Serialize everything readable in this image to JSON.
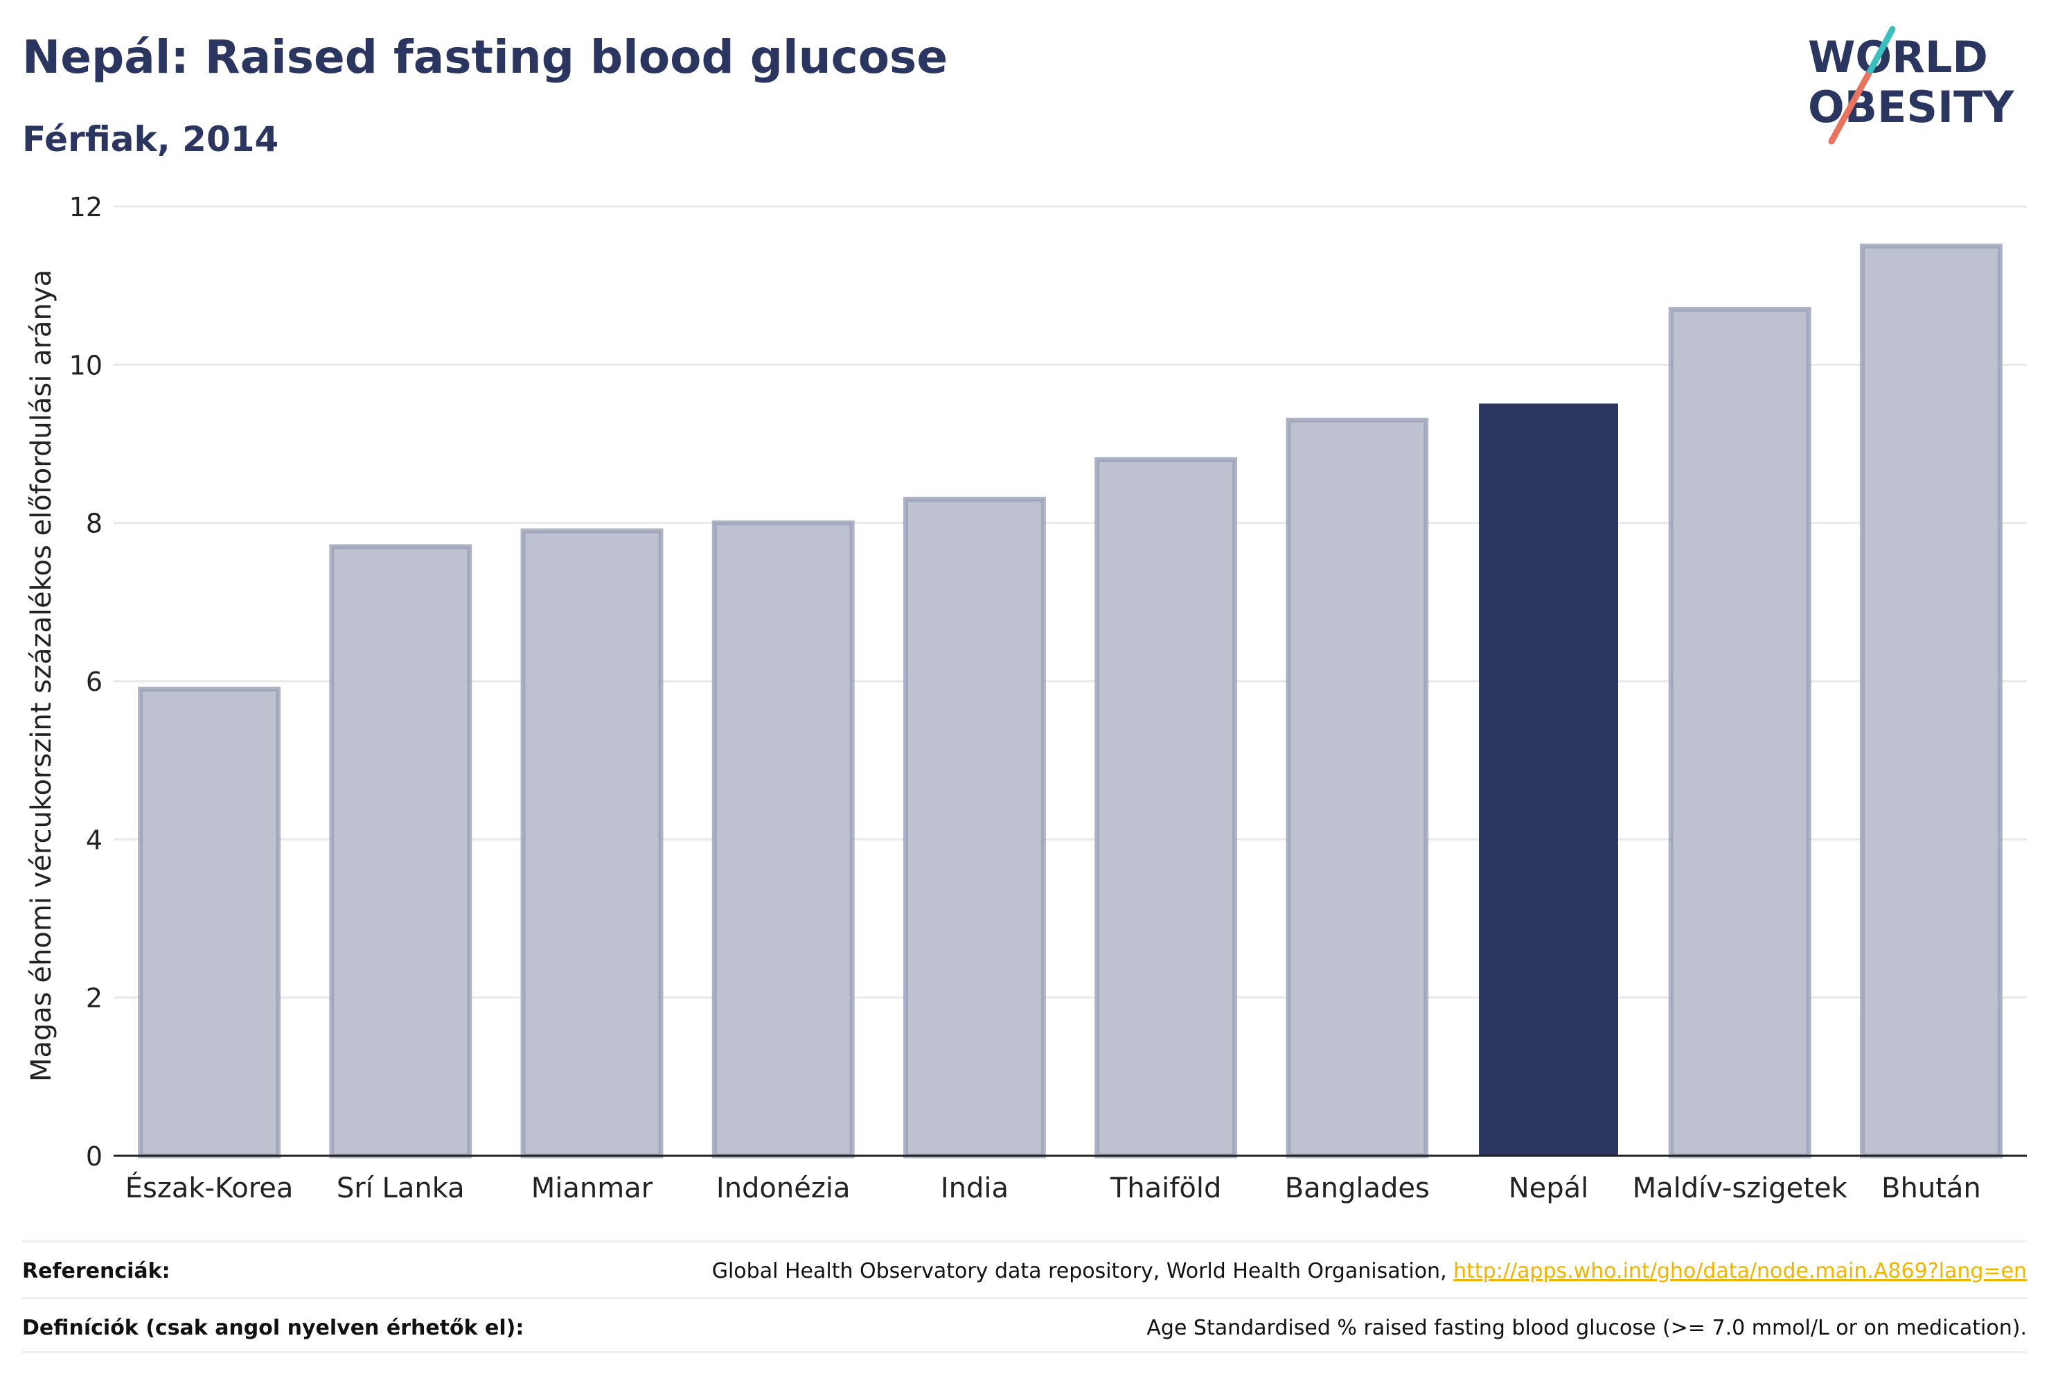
{
  "header": {
    "title": "Nepál: Raised fasting blood glucose",
    "subtitle": "Férfiak, 2014"
  },
  "logo": {
    "line1": "WORLD",
    "line2": "OBESITY"
  },
  "chart_data": {
    "type": "bar",
    "title": "Nepál: Raised fasting blood glucose",
    "subtitle": "Férfiak, 2014",
    "xlabel": "",
    "ylabel": "Magas éhomi vércukorszint százalékos előfordulási aránya",
    "ylim": [
      0,
      12
    ],
    "yticks": [
      0,
      2,
      4,
      6,
      8,
      10,
      12
    ],
    "grid": true,
    "categories": [
      "Észak-Korea",
      "Srí Lanka",
      "Mianmar",
      "Indonézia",
      "India",
      "Thaiföld",
      "Banglades",
      "Nepál",
      "Maldív-szigetek",
      "Bhután"
    ],
    "values": [
      5.9,
      7.7,
      7.9,
      8.0,
      8.3,
      8.8,
      9.3,
      9.5,
      10.7,
      11.5
    ],
    "highlight": "Nepál",
    "colors": {
      "highlight": "#2a3560",
      "other": "#bec1cf",
      "other_border": "#9aa0b6"
    }
  },
  "footer": {
    "references_label": "Referenciák:",
    "references_text": "Global Health Observatory data repository, World Health Organisation, ",
    "references_link": "http://apps.who.int/gho/data/node.main.A869?lang=en",
    "definitions_label": "Definíciók (csak angol nyelven érhetők el):",
    "definitions_text": "Age Standardised % raised fasting blood glucose (>= 7.0 mmol/L or on medication)."
  }
}
